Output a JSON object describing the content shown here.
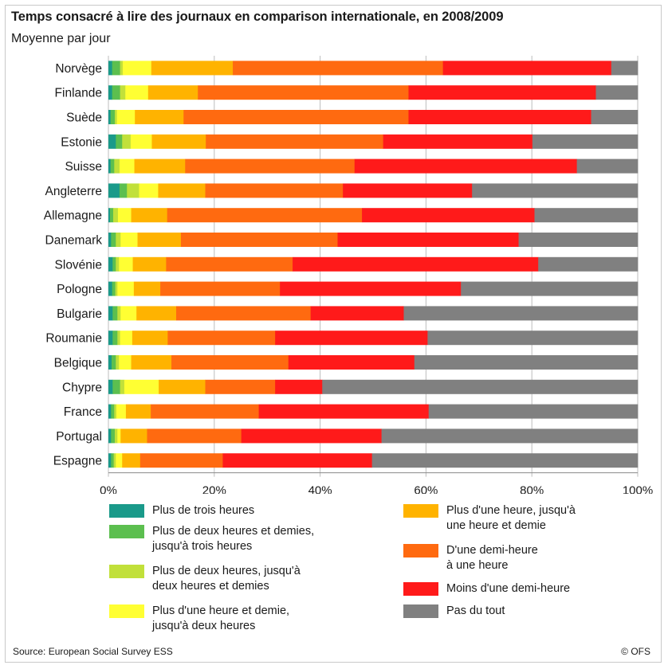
{
  "chart_data": {
    "type": "bar",
    "orientation": "horizontal",
    "stacked": true,
    "title": "Temps consacré à lire des journaux en comparison internationale, en 2008/2009",
    "subtitle": "Moyenne par jour",
    "xlabel": "",
    "ylabel": "",
    "xlim": [
      0,
      100
    ],
    "x_ticks": [
      "0%",
      "20%",
      "40%",
      "60%",
      "80%",
      "100%"
    ],
    "grid": true,
    "legend_position": "bottom",
    "categories": [
      "Norvège",
      "Finlande",
      "Suède",
      "Estonie",
      "Suisse",
      "Angleterre",
      "Allemagne",
      "Danemark",
      "Slovénie",
      "Pologne",
      "Bulgarie",
      "Roumanie",
      "Belgique",
      "Chypre",
      "France",
      "Portugal",
      "Espagne"
    ],
    "series": [
      {
        "name": "Plus de trois heures",
        "color": "#1a9a8a",
        "values": [
          0.7,
          0.7,
          0.4,
          1.4,
          0.4,
          2.1,
          0.3,
          0.5,
          0.8,
          0.7,
          0.8,
          0.8,
          0.6,
          0.8,
          0.5,
          0.5,
          0.5
        ]
      },
      {
        "name": "Plus de deux heures et demies, jusqu'à trois heures",
        "color": "#5cbf4f",
        "values": [
          1.5,
          1.5,
          0.8,
          1.2,
          0.7,
          1.4,
          0.6,
          0.9,
          0.6,
          0.6,
          0.9,
          0.9,
          0.8,
          1.4,
          0.6,
          0.7,
          0.5
        ]
      },
      {
        "name": "Plus de deux heures, jusqu'à deux heures et demies",
        "color": "#c1e03a",
        "values": [
          0.5,
          1.0,
          0.4,
          1.6,
          1.0,
          2.3,
          0.9,
          0.9,
          0.6,
          0.4,
          0.6,
          0.5,
          0.6,
          0.8,
          0.4,
          0.5,
          0.4
        ]
      },
      {
        "name": "Plus d'une heure et demie, jusqu'à deux heures",
        "color": "#ffff33",
        "values": [
          5.4,
          4.3,
          3.4,
          4.0,
          2.8,
          3.6,
          2.5,
          3.2,
          2.6,
          3.1,
          3.0,
          2.3,
          2.3,
          6.5,
          1.8,
          0.6,
          1.2
        ]
      },
      {
        "name": "Plus d'une heure, jusqu'à une heure et demie",
        "color": "#ffb300",
        "values": [
          15.4,
          9.4,
          9.2,
          10.2,
          9.6,
          8.9,
          6.8,
          8.2,
          6.3,
          5.0,
          7.5,
          6.7,
          7.6,
          8.8,
          4.7,
          5.0,
          3.4
        ]
      },
      {
        "name": "D'une demi-heure à une heure",
        "color": "#ff6a10",
        "values": [
          39.7,
          39.8,
          42.5,
          33.5,
          32.0,
          26.0,
          36.8,
          29.6,
          23.9,
          22.6,
          25.4,
          20.3,
          22.1,
          13.2,
          20.4,
          17.8,
          15.6
        ]
      },
      {
        "name": "Moins d'une demi-heure",
        "color": "#ff1a1a",
        "values": [
          31.8,
          35.4,
          34.5,
          28.2,
          42.0,
          24.4,
          32.6,
          34.2,
          46.4,
          34.2,
          17.6,
          28.8,
          23.8,
          8.9,
          32.1,
          26.5,
          28.2
        ]
      },
      {
        "name": "Pas du tout",
        "color": "#808080",
        "values": [
          5.0,
          7.9,
          8.8,
          19.9,
          11.5,
          31.3,
          19.5,
          22.5,
          18.8,
          33.4,
          44.2,
          39.7,
          42.2,
          59.6,
          39.5,
          48.4,
          50.2
        ]
      }
    ]
  },
  "legend": {
    "labels": [
      "Plus de trois heures",
      "Plus de deux heures et demies,\njusqu'à trois heures",
      "Plus de deux heures, jusqu'à\ndeux heures et demies",
      "Plus d'une heure et demie,\njusqu'à deux heures",
      "Plus d'une heure, jusqu'à\nune heure et demie",
      "D'une demi-heure\nà une heure",
      "Moins d'une demi-heure",
      "Pas du tout"
    ]
  },
  "footer": {
    "source": "Source: European Social Survey ESS",
    "credit": "© OFS"
  }
}
